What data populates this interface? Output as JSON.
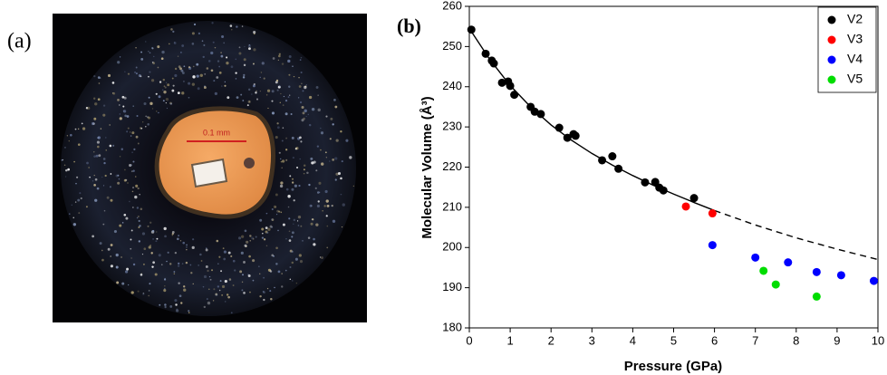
{
  "panel_a": {
    "label": "(a)",
    "scale_label": "0.1 mm"
  },
  "chart_data": {
    "type": "scatter",
    "panel_label": "(b)",
    "xlabel": "Pressure (GPa)",
    "ylabel": "Molecular Volume (Å³)",
    "xlim": [
      0,
      10
    ],
    "xticks": [
      0,
      1,
      2,
      3,
      4,
      5,
      6,
      7,
      8,
      9,
      10
    ],
    "ylim": [
      180,
      260
    ],
    "yticks": [
      180,
      190,
      200,
      210,
      220,
      230,
      240,
      250,
      260
    ],
    "grid": false,
    "legend": "upper-right",
    "series": [
      {
        "name": "V2",
        "color": "#000000",
        "x": [
          0.05,
          0.4,
          0.55,
          0.6,
          0.8,
          0.95,
          1.0,
          1.1,
          1.5,
          1.6,
          1.75,
          2.2,
          2.4,
          2.55,
          2.6,
          3.25,
          3.5,
          3.65,
          4.3,
          4.55,
          4.65,
          4.75,
          5.5
        ],
        "values": [
          254.2,
          248.2,
          246.5,
          245.8,
          241.0,
          241.3,
          240.2,
          238.0,
          235.0,
          233.8,
          233.2,
          229.8,
          227.3,
          228.2,
          227.8,
          221.7,
          222.7,
          219.6,
          216.2,
          216.3,
          214.9,
          214.2,
          212.3
        ]
      },
      {
        "name": "V3",
        "color": "#ff0000",
        "x": [
          5.3,
          5.95
        ],
        "values": [
          210.2,
          208.5
        ]
      },
      {
        "name": "V4",
        "color": "#0000ff",
        "x": [
          5.95,
          7.0,
          7.8,
          8.5,
          9.1,
          9.9
        ],
        "values": [
          200.6,
          197.5,
          196.3,
          193.9,
          193.1,
          191.7
        ]
      },
      {
        "name": "V5",
        "color": "#00dd00",
        "x": [
          7.2,
          7.5,
          8.5
        ],
        "values": [
          194.2,
          190.8,
          187.8
        ]
      }
    ],
    "fits": [
      {
        "dashed": false,
        "x": [
          0,
          0.5,
          1,
          1.5,
          2,
          2.5,
          3,
          3.5,
          4,
          4.5,
          5,
          5.5,
          6
        ],
        "values": [
          254.5,
          246.8,
          240.3,
          235.0,
          230.5,
          226.7,
          223.4,
          220.5,
          217.9,
          215.5,
          213.3,
          211.2,
          209.2
        ]
      },
      {
        "dashed": true,
        "x": [
          6,
          7,
          8,
          9,
          10
        ],
        "values": [
          209.2,
          205.6,
          202.4,
          199.6,
          197.0
        ]
      }
    ]
  }
}
